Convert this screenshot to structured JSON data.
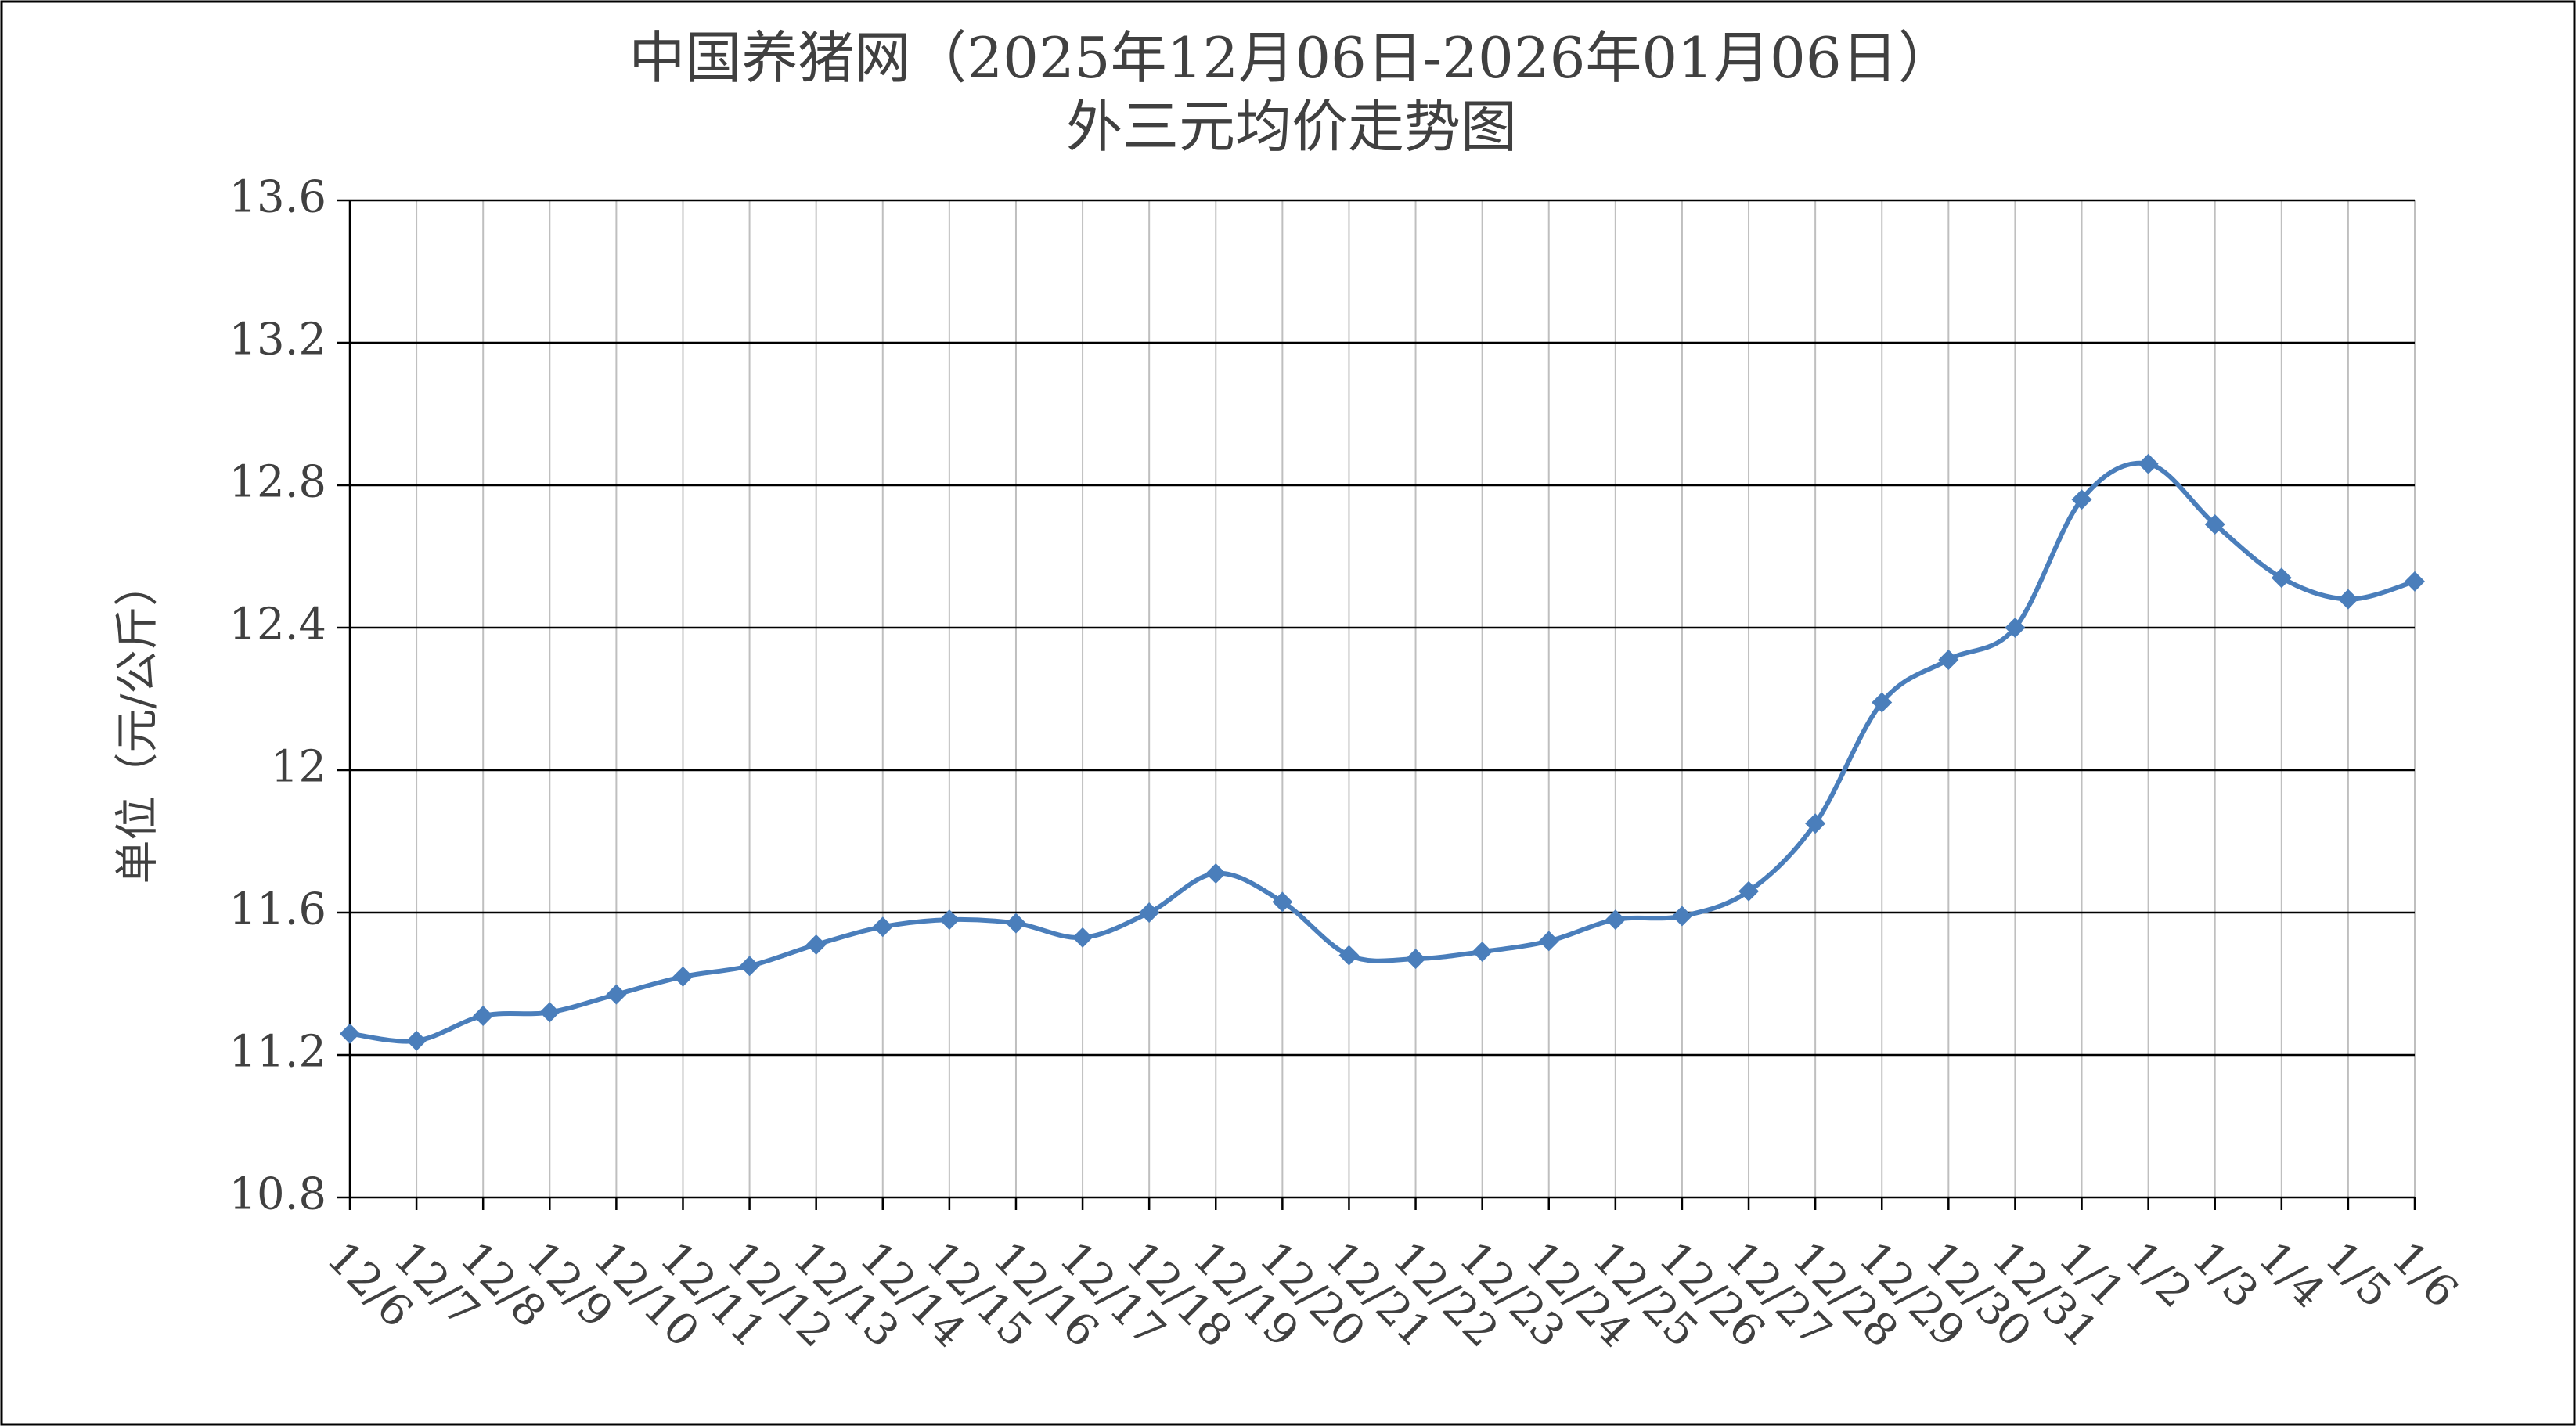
{
  "chart_data": {
    "type": "line",
    "title": [
      "中国养猪网（2025年12月06日-2026年01月06日）",
      "外三元均价走势图"
    ],
    "y_label": "单位（元/公斤）",
    "categories": [
      "12/6",
      "12/7",
      "12/8",
      "12/9",
      "12/10",
      "12/11",
      "12/12",
      "12/13",
      "12/14",
      "12/15",
      "12/16",
      "12/17",
      "12/18",
      "12/19",
      "12/20",
      "12/21",
      "12/22",
      "12/23",
      "12/24",
      "12/25",
      "12/26",
      "12/27",
      "12/28",
      "12/29",
      "12/30",
      "12/31",
      "1/1",
      "1/2",
      "1/3",
      "1/4",
      "1/5",
      "1/6"
    ],
    "series": [
      {
        "name": "外三元均价",
        "color": "#4a7ebb",
        "values": [
          11.26,
          11.24,
          11.31,
          11.32,
          11.37,
          11.42,
          11.45,
          11.51,
          11.56,
          11.58,
          11.57,
          11.53,
          11.6,
          11.71,
          11.63,
          11.48,
          11.47,
          11.49,
          11.52,
          11.58,
          11.59,
          11.66,
          11.85,
          12.19,
          12.31,
          12.4,
          12.76,
          12.86,
          12.69,
          12.54,
          12.48,
          12.53
        ]
      }
    ],
    "ylim": [
      10.8,
      13.6
    ],
    "yticks": [
      10.8,
      11.2,
      11.6,
      12,
      12.4,
      12.8,
      13.2,
      13.6
    ],
    "grid": true,
    "smooth": true
  }
}
